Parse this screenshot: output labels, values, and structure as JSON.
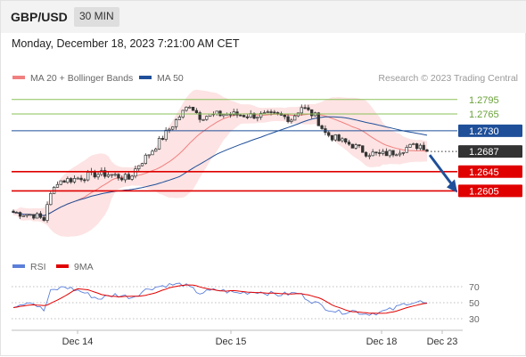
{
  "header": {
    "symbol": "GBP/USD",
    "timeframe": "30 MIN",
    "datetime": "Monday, December 18, 2023 7:21:00 AM CET"
  },
  "legend": {
    "ma20_label": "MA 20 + Bollinger Bands",
    "ma50_label": "MA 50",
    "rsi_label": "RSI",
    "ma9_label": "9MA",
    "credit": "Research © 2023 Trading Central"
  },
  "colors": {
    "candle": "#333333",
    "ma20": "#f08080",
    "bollinger_fill": "#fde3e3",
    "ma50": "#1f4f99",
    "resistance_green": "#8ac15a",
    "pivot_blue": "#1f4f99",
    "support_red": "#e00000",
    "current_price": "#333333",
    "rsi": "#5b7fd9",
    "rsi_ma": "#e00000",
    "arrow": "#1f4f99"
  },
  "chart_data": [
    {
      "type": "candlestick",
      "title": "GBP/USD",
      "ylim": [
        1.2515,
        1.2815
      ],
      "x_ticks": [
        "Dec 14",
        "Dec 15",
        "Dec 18",
        "Dec 23"
      ],
      "levels": [
        {
          "label": "1.2795",
          "value": 1.2795,
          "kind": "resistance"
        },
        {
          "label": "1.2765",
          "value": 1.2765,
          "kind": "resistance"
        },
        {
          "label": "1.2730",
          "value": 1.273,
          "kind": "pivot"
        },
        {
          "label": "1.2687",
          "value": 1.2687,
          "kind": "last"
        },
        {
          "label": "1.2645",
          "value": 1.2645,
          "kind": "support"
        },
        {
          "label": "1.2605",
          "value": 1.2605,
          "kind": "support"
        }
      ],
      "price_path": [
        [
          0,
          1.256
        ],
        [
          6,
          1.2555
        ],
        [
          9,
          1.2545
        ],
        [
          10,
          1.258
        ],
        [
          13,
          1.2625
        ],
        [
          18,
          1.263
        ],
        [
          24,
          1.264
        ],
        [
          28,
          1.264
        ],
        [
          34,
          1.263
        ],
        [
          37,
          1.266
        ],
        [
          41,
          1.269
        ],
        [
          45,
          1.2725
        ],
        [
          49,
          1.276
        ],
        [
          52,
          1.2785
        ],
        [
          55,
          1.276
        ],
        [
          62,
          1.2765
        ],
        [
          70,
          1.2762
        ],
        [
          78,
          1.2762
        ],
        [
          82,
          1.2755
        ],
        [
          85,
          1.278
        ],
        [
          89,
          1.276
        ],
        [
          92,
          1.2725
        ],
        [
          96,
          1.271
        ],
        [
          100,
          1.27
        ],
        [
          104,
          1.2685
        ],
        [
          108,
          1.268
        ],
        [
          112,
          1.2685
        ],
        [
          116,
          1.2695
        ],
        [
          120,
          1.27
        ],
        [
          122,
          1.2695
        ]
      ],
      "series": [
        {
          "name": "MA 20 + Bollinger Bands"
        },
        {
          "name": "MA 50"
        }
      ],
      "forecast": {
        "from": 1.2687,
        "to": 1.2605
      }
    },
    {
      "type": "line",
      "ylim": [
        20,
        80
      ],
      "y_ticks": [
        70,
        50,
        30
      ],
      "series": [
        {
          "name": "RSI"
        },
        {
          "name": "9MA"
        }
      ],
      "rsi_path": [
        [
          0,
          46
        ],
        [
          5,
          52
        ],
        [
          9,
          40
        ],
        [
          11,
          64
        ],
        [
          15,
          70
        ],
        [
          20,
          64
        ],
        [
          25,
          55
        ],
        [
          30,
          60
        ],
        [
          35,
          57
        ],
        [
          40,
          68
        ],
        [
          45,
          72
        ],
        [
          50,
          73
        ],
        [
          55,
          62
        ],
        [
          60,
          66
        ],
        [
          66,
          62
        ],
        [
          72,
          64
        ],
        [
          78,
          60
        ],
        [
          84,
          62
        ],
        [
          88,
          52
        ],
        [
          92,
          44
        ],
        [
          96,
          38
        ],
        [
          100,
          40
        ],
        [
          104,
          36
        ],
        [
          108,
          38
        ],
        [
          112,
          42
        ],
        [
          116,
          50
        ],
        [
          120,
          51
        ],
        [
          122,
          48
        ]
      ]
    }
  ]
}
